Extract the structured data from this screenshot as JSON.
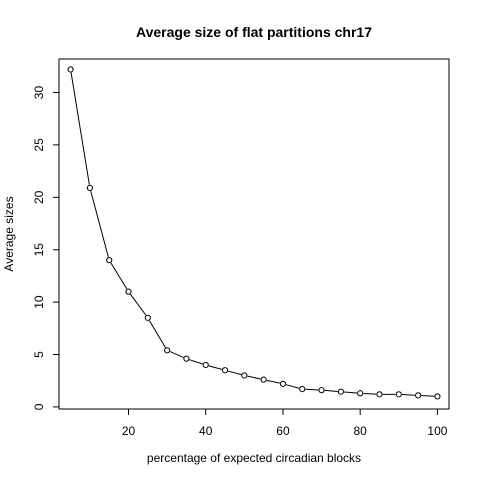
{
  "chart_data": {
    "type": "line",
    "title": "Average size of flat partitions chr17",
    "xlabel": "percentage of expected circadian blocks",
    "ylabel": "Average sizes",
    "xlim": [
      2,
      103
    ],
    "ylim": [
      -0.2,
      33.2
    ],
    "xticks": [
      20,
      40,
      60,
      80,
      100
    ],
    "yticks": [
      0,
      5,
      10,
      15,
      20,
      25,
      30
    ],
    "grid": false,
    "marker": "open-circle",
    "series": [
      {
        "x": [
          5,
          10,
          15,
          20,
          25,
          30,
          35,
          40,
          45,
          50,
          55,
          60,
          65,
          70,
          75,
          80,
          85,
          90,
          95,
          100
        ],
        "y": [
          32.2,
          20.9,
          14.0,
          11.0,
          8.5,
          5.4,
          4.6,
          4.0,
          3.5,
          3.0,
          2.6,
          2.2,
          1.7,
          1.6,
          1.45,
          1.3,
          1.2,
          1.2,
          1.1,
          1.0
        ]
      }
    ]
  }
}
